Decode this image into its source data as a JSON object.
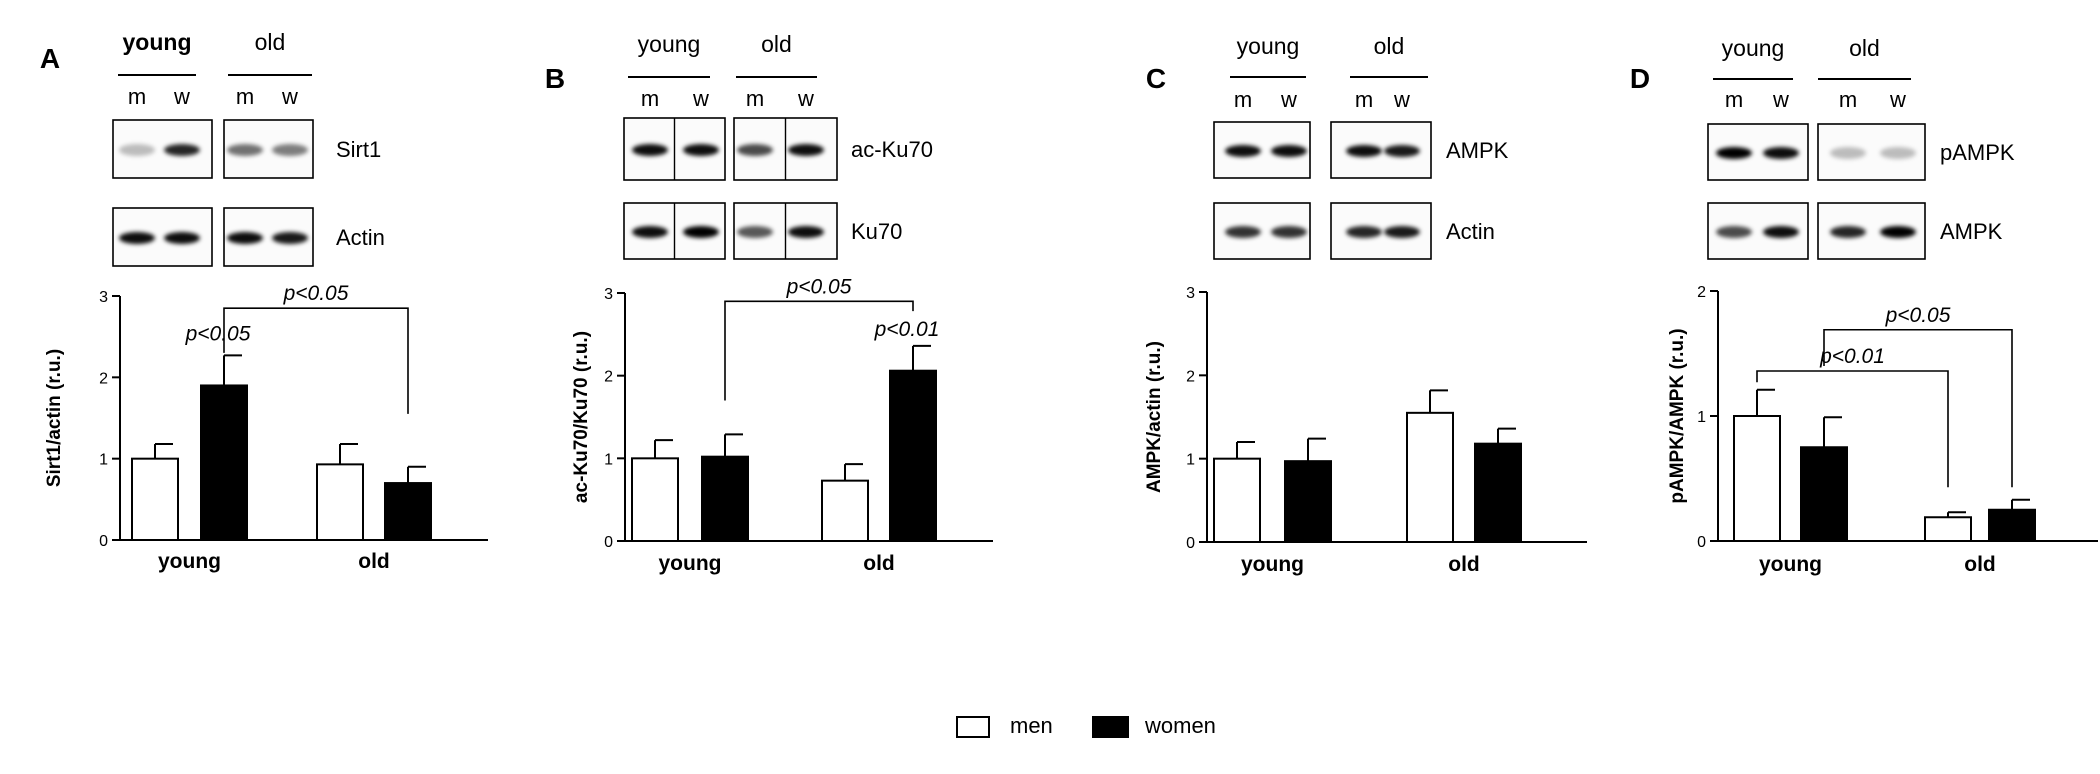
{
  "legend": [
    {
      "label": "men",
      "color": "#ffffff"
    },
    {
      "label": "women",
      "color": "#000000"
    }
  ],
  "colors": {
    "men": "#ffffff",
    "women": "#000000",
    "axis": "#000000"
  },
  "chart_data": [
    {
      "panel": "A",
      "type": "bar",
      "blot": {
        "groups": [
          "young",
          "old"
        ],
        "bold_group": "young",
        "lanes": [
          "m",
          "w"
        ],
        "proteins": [
          "Sirt1",
          "Actin"
        ]
      },
      "ylabel": "Sirt1/actin (r.u.)",
      "ylim": [
        0,
        3
      ],
      "yticks": [
        0,
        1,
        2,
        3
      ],
      "categories": [
        "young",
        "old"
      ],
      "series": [
        {
          "name": "men",
          "values": [
            1.0,
            0.93
          ],
          "errors": [
            0.18,
            0.25
          ]
        },
        {
          "name": "women",
          "values": [
            1.9,
            0.7
          ],
          "errors": [
            0.37,
            0.2
          ]
        }
      ],
      "annotations": [
        {
          "text": "p<0.05",
          "type": "label",
          "category": 0,
          "series": 1,
          "y": 2.45
        },
        {
          "text": "p<0.05",
          "type": "bracket",
          "from": {
            "category": 0,
            "series": 1
          },
          "to": {
            "category": 1,
            "series": 1
          },
          "y": 2.85,
          "left_end": 2.3,
          "right_end": 1.55
        }
      ]
    },
    {
      "panel": "B",
      "type": "bar",
      "blot": {
        "groups": [
          "young",
          "old"
        ],
        "bold_group": "",
        "lanes": [
          "m",
          "w"
        ],
        "proteins": [
          "ac-Ku70",
          "Ku70"
        ]
      },
      "ylabel": "ac-Ku70/Ku70 (r.u.)",
      "ylim": [
        0,
        3
      ],
      "yticks": [
        0,
        1,
        2,
        3
      ],
      "categories": [
        "young",
        "old"
      ],
      "series": [
        {
          "name": "men",
          "values": [
            1.0,
            0.73
          ],
          "errors": [
            0.22,
            0.2
          ]
        },
        {
          "name": "women",
          "values": [
            1.02,
            2.06
          ],
          "errors": [
            0.27,
            0.3
          ]
        }
      ],
      "annotations": [
        {
          "text": "p<0.05",
          "type": "bracket",
          "from": {
            "category": 0,
            "series": 1
          },
          "to": {
            "category": 1,
            "series": 1
          },
          "y": 2.9,
          "left_end": 1.7,
          "right_end": 2.78
        },
        {
          "text": "p<0.01",
          "type": "label",
          "category": 1,
          "series": 1,
          "y": 2.48
        }
      ]
    },
    {
      "panel": "C",
      "type": "bar",
      "blot": {
        "groups": [
          "young",
          "old"
        ],
        "bold_group": "",
        "lanes": [
          "m",
          "w"
        ],
        "proteins": [
          "AMPK",
          "Actin"
        ]
      },
      "ylabel": "AMPK/actin (r.u.)",
      "ylim": [
        0,
        3
      ],
      "yticks": [
        0,
        1,
        2,
        3
      ],
      "categories": [
        "young",
        "old"
      ],
      "series": [
        {
          "name": "men",
          "values": [
            1.0,
            1.55
          ],
          "errors": [
            0.2,
            0.27
          ]
        },
        {
          "name": "women",
          "values": [
            0.97,
            1.18
          ],
          "errors": [
            0.27,
            0.18
          ]
        }
      ],
      "annotations": []
    },
    {
      "panel": "D",
      "type": "bar",
      "blot": {
        "groups": [
          "young",
          "old"
        ],
        "bold_group": "",
        "lanes": [
          "m",
          "w"
        ],
        "proteins": [
          "pAMPK",
          "AMPK"
        ]
      },
      "ylabel": "pAMPK/AMPK (r.u.)",
      "ylim": [
        0,
        2
      ],
      "yticks": [
        0,
        1,
        2
      ],
      "categories": [
        "young",
        "old"
      ],
      "series": [
        {
          "name": "men",
          "values": [
            1.0,
            0.19
          ],
          "errors": [
            0.21,
            0.04
          ]
        },
        {
          "name": "women",
          "values": [
            0.75,
            0.25
          ],
          "errors": [
            0.24,
            0.08
          ]
        }
      ],
      "annotations": [
        {
          "text": "p<0.01",
          "type": "bracket",
          "from": {
            "category": 0,
            "series": 0
          },
          "to": {
            "category": 1,
            "series": 0
          },
          "y": 1.36,
          "left_end": 1.27,
          "right_end": 0.43
        },
        {
          "text": "p<0.05",
          "type": "bracket",
          "from": {
            "category": 0,
            "series": 1
          },
          "to": {
            "category": 1,
            "series": 1
          },
          "y": 1.69,
          "left_end": 1.4,
          "right_end": 0.43
        }
      ]
    }
  ]
}
